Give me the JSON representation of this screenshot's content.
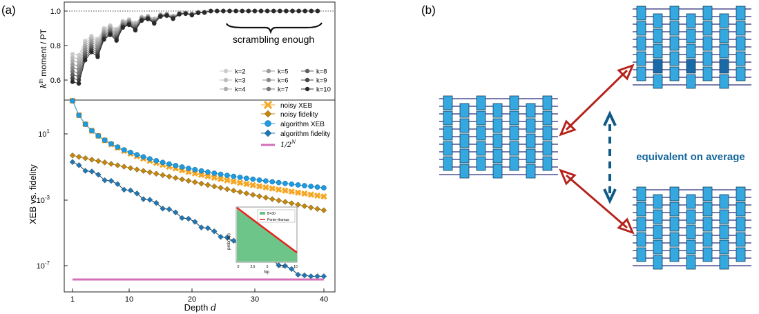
{
  "panel_a_label": "(a)",
  "panel_b_label": "(b)",
  "top_plot": {
    "ylabel_k": "k",
    "ylabel_sup": "th",
    "ylabel_rest": " moment / PT",
    "yticks": [
      "0.6",
      "0.8",
      "1.0"
    ],
    "annotation": "scrambling enough",
    "legend": [
      "k=2",
      "k=3",
      "k=4",
      "k=5",
      "k=6",
      "k=7",
      "k=8",
      "k=9",
      "k=10"
    ],
    "legend_colors": [
      "#cccccc",
      "#bdbdbd",
      "#adadad",
      "#9c9c9c",
      "#8a8a8a",
      "#777777",
      "#5f5f5f",
      "#454545",
      "#2a2a2a"
    ]
  },
  "bottom_plot": {
    "ylabel": "XEB vs. fidelity",
    "xlabel": "Depth ",
    "xlabel_var": "d",
    "yticks": [
      "10",
      "10",
      "10"
    ],
    "ytick_exps": [
      "1",
      "-3",
      "-7"
    ],
    "xticks": [
      "1",
      "10",
      "20",
      "30",
      "40"
    ],
    "legend": [
      "noisy XEB",
      "noisy fidelity",
      "algorithm XEB",
      "algorithm fidelity",
      "1/2^N"
    ],
    "legend_colors": [
      "#f5a623",
      "#c4870a",
      "#1e9be0",
      "#1f77b4",
      "#d46fb8"
    ],
    "inset": {
      "legend": [
        "B=30",
        "Porter-thomas"
      ],
      "ylabel": "prob(Np)",
      "xlabel": "Np",
      "xticks": [
        "0",
        "2.5",
        "5",
        "7.5",
        "10"
      ]
    }
  },
  "panel_b": {
    "caption": "equivalent on average"
  },
  "chart_data": [
    {
      "type": "line",
      "title": "",
      "ylabel": "kth moment / PT",
      "ylim": [
        0.55,
        1.03
      ],
      "series": [
        {
          "name": "k=2",
          "values": [
            0.75,
            0.82,
            0.88,
            0.9,
            0.93,
            0.95,
            0.97,
            0.98,
            0.99,
            1.0
          ]
        },
        {
          "name": "k=10",
          "values": [
            0.59,
            0.68,
            0.75,
            0.8,
            0.86,
            0.9,
            0.95,
            0.97,
            0.99,
            1.0
          ]
        }
      ]
    },
    {
      "type": "line",
      "title": "",
      "xlabel": "Depth d",
      "ylabel": "XEB vs. fidelity",
      "log_y": true,
      "x": [
        1,
        10,
        20,
        30,
        40
      ],
      "series": [
        {
          "name": "noisy XEB",
          "values": [
            1000,
            3,
            0.15,
            0.012,
            0.001
          ]
        },
        {
          "name": "noisy fidelity",
          "values": [
            0.8,
            0.15,
            0.02,
            0.002,
            0.0003
          ]
        },
        {
          "name": "algorithm XEB",
          "values": [
            1000,
            3,
            0.2,
            0.015,
            0.0025
          ]
        },
        {
          "name": "algorithm fidelity",
          "values": [
            0.25,
            0.003,
            0.0001,
            1e-06,
            3e-08
          ]
        },
        {
          "name": "1/2^N",
          "values": [
            2e-08,
            2e-08,
            2e-08,
            2e-08,
            2e-08
          ]
        }
      ]
    }
  ]
}
